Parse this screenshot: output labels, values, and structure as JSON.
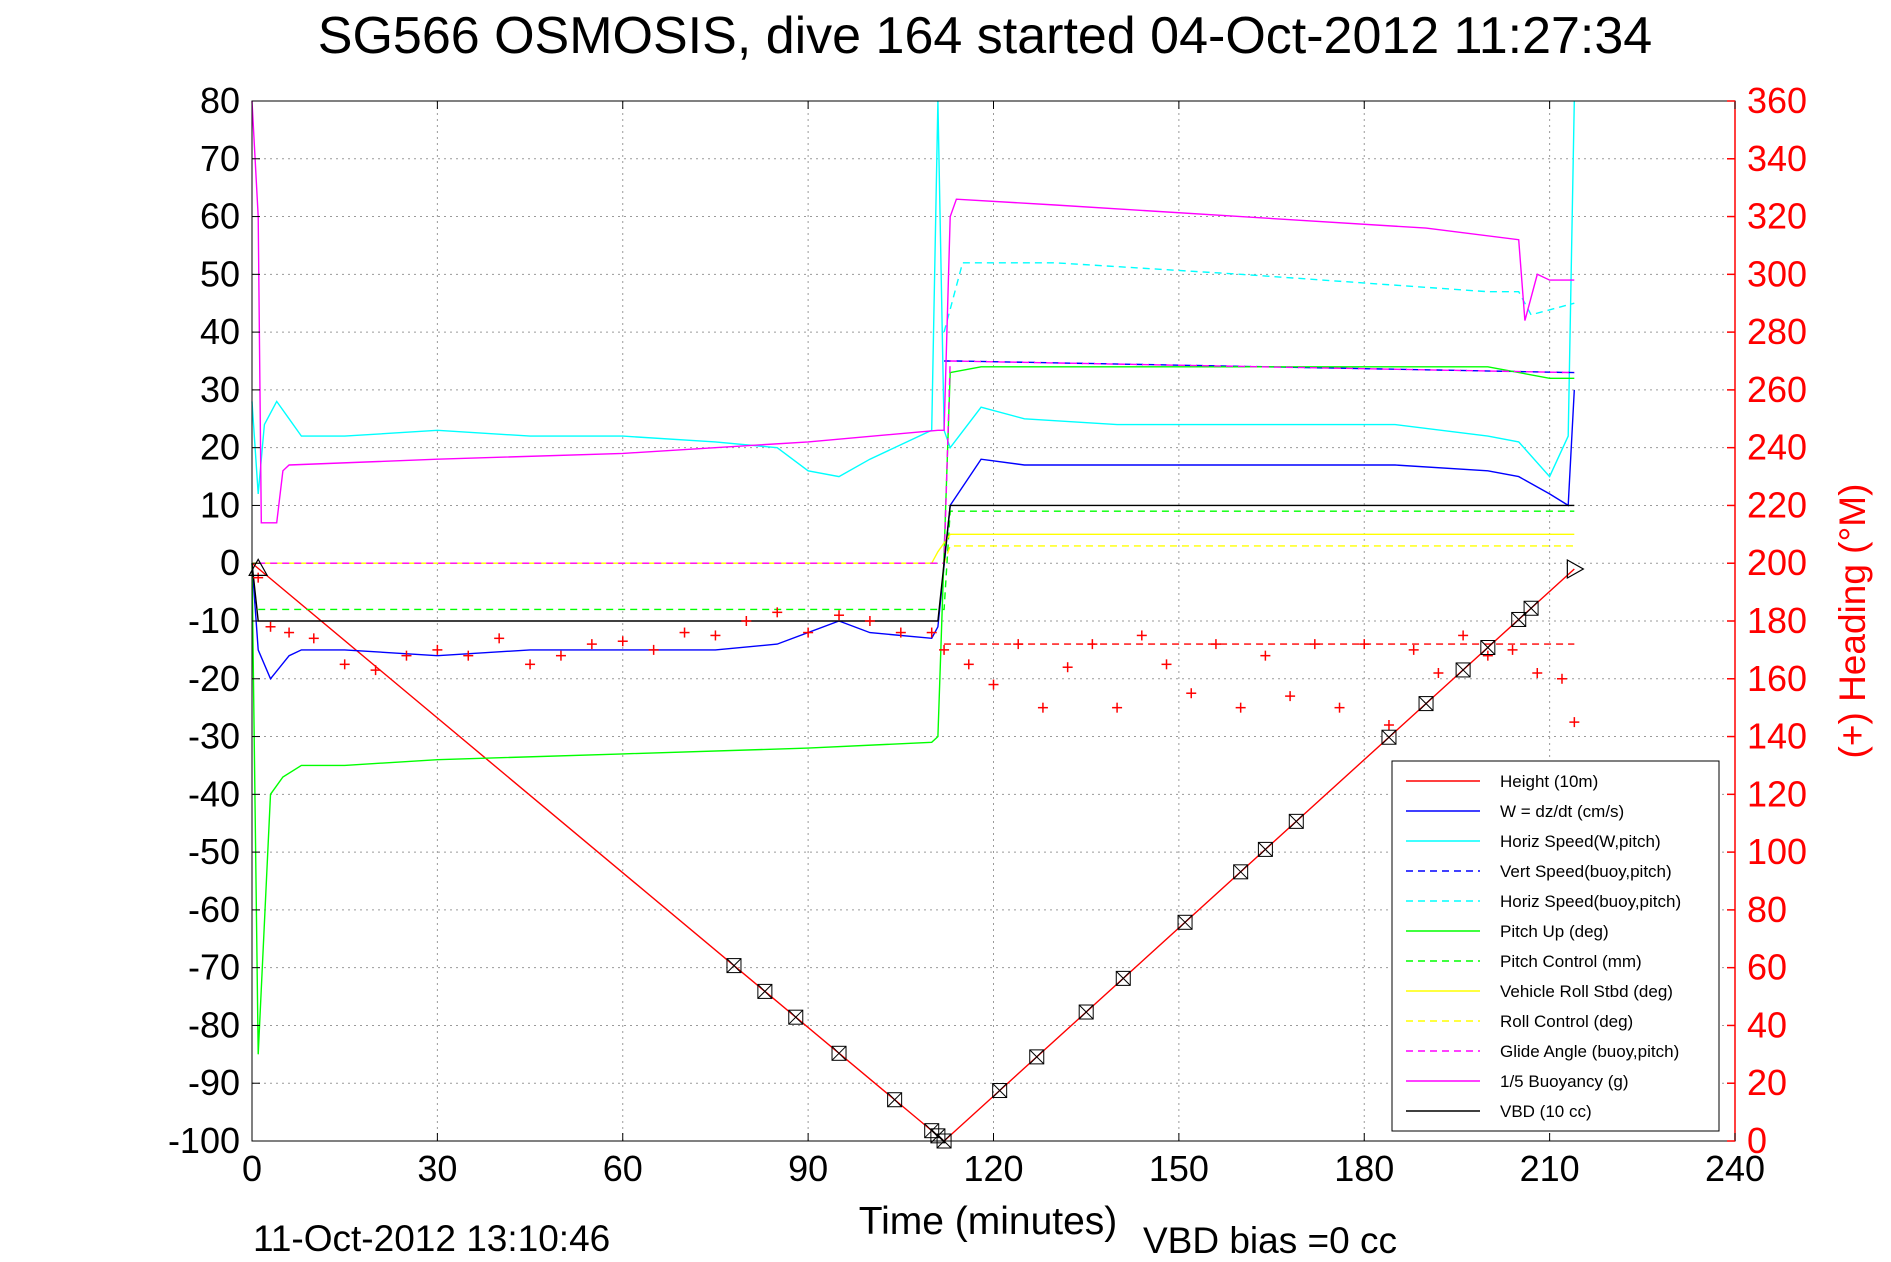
{
  "chart_data": {
    "type": "line",
    "title": "SG566 OSMOSIS, dive 164 started 04-Oct-2012 11:27:34",
    "xlabel": "Time (minutes)",
    "ylabel_right": "(+) Heading (°M)",
    "footer_left": "11-Oct-2012 13:10:46",
    "footer_right": "VBD bias =0 cc",
    "xlim": [
      0,
      240
    ],
    "ylim": [
      -100,
      80
    ],
    "ylim_right": [
      0,
      360
    ],
    "x_ticks": [
      "0",
      "30",
      "60",
      "90",
      "120",
      "150",
      "180",
      "210",
      "240"
    ],
    "y_ticks": [
      "80",
      "70",
      "60",
      "50",
      "40",
      "30",
      "20",
      "10",
      "0",
      "-10",
      "-20",
      "-30",
      "-40",
      "-50",
      "-60",
      "-70",
      "-80",
      "-90",
      "-100"
    ],
    "y_ticks_right": [
      "360",
      "340",
      "320",
      "300",
      "280",
      "260",
      "240",
      "220",
      "200",
      "180",
      "160",
      "140",
      "120",
      "100",
      "80",
      "60",
      "40",
      "20",
      "0"
    ],
    "grid": true,
    "legend_position": "bottom-right",
    "colors": {
      "height": "#ff0000",
      "w": "#0000ff",
      "horiz_speed_w": "#00ffff",
      "vert_speed_buoy": "#0000ff",
      "horiz_speed_buoy": "#00ffff",
      "pitch_up": "#00ff00",
      "pitch_control": "#00ff00",
      "roll": "#ffff00",
      "roll_control": "#ffff00",
      "glide_angle": "#ff00ff",
      "buoyancy": "#ff00ff",
      "vbd": "#000000",
      "heading": "#ff0000",
      "right_axis": "#ff0000"
    },
    "series": [
      {
        "name": "Height (10m)",
        "style": "solid",
        "color_key": "height",
        "x": [
          0,
          112,
          214
        ],
        "y": [
          0,
          -100,
          -1
        ]
      },
      {
        "name": "W = dz/dt (cm/s)",
        "style": "solid",
        "color_key": "w",
        "x": [
          0,
          1,
          3,
          6,
          8,
          15,
          30,
          45,
          60,
          75,
          85,
          95,
          100,
          110,
          111,
          113,
          118,
          125,
          140,
          155,
          170,
          185,
          200,
          205,
          210,
          213,
          214
        ],
        "y": [
          0,
          -15,
          -20,
          -16,
          -15,
          -15,
          -16,
          -15,
          -15,
          -15,
          -14,
          -10,
          -12,
          -13,
          -11,
          10,
          18,
          17,
          17,
          17,
          17,
          17,
          16,
          15,
          12,
          10,
          30
        ]
      },
      {
        "name": "Horiz Speed(W,pitch)",
        "style": "solid",
        "color_key": "horiz_speed_w",
        "x": [
          0,
          1,
          2,
          4,
          6,
          8,
          15,
          30,
          45,
          60,
          75,
          85,
          90,
          95,
          100,
          110,
          111,
          112,
          113,
          118,
          125,
          140,
          155,
          170,
          185,
          200,
          205,
          210,
          213,
          214
        ],
        "y": [
          28,
          12,
          24,
          28,
          25,
          22,
          22,
          23,
          22,
          22,
          21,
          20,
          16,
          15,
          18,
          23,
          80,
          23,
          20,
          27,
          25,
          24,
          24,
          24,
          24,
          22,
          21,
          15,
          22,
          80
        ]
      },
      {
        "name": "Vert Speed(buoy,pitch)",
        "style": "dashed",
        "color_key": "vert_speed_buoy",
        "x": [
          112,
          114,
          214
        ],
        "y": [
          35,
          35,
          33
        ]
      },
      {
        "name": "Horiz Speed(buoy,pitch)",
        "style": "dashed",
        "color_key": "horiz_speed_buoy",
        "x": [
          112,
          115,
          130,
          160,
          200,
          205,
          207,
          214
        ],
        "y": [
          40,
          52,
          52,
          50,
          47,
          47,
          43,
          45
        ]
      },
      {
        "name": "Pitch Up (deg)",
        "style": "solid",
        "color_key": "pitch_up",
        "x": [
          0,
          1,
          3,
          5,
          8,
          15,
          30,
          60,
          90,
          110,
          111,
          113,
          118,
          140,
          160,
          180,
          200,
          210,
          214
        ],
        "y": [
          0,
          -85,
          -40,
          -37,
          -35,
          -35,
          -34,
          -33,
          -32,
          -31,
          -30,
          33,
          34,
          34,
          34,
          34,
          34,
          32,
          32
        ]
      },
      {
        "name": "Pitch Control (mm)",
        "style": "dashed",
        "color_key": "pitch_control",
        "x": [
          1,
          112,
          113,
          214
        ],
        "y": [
          -8,
          -8,
          9,
          9
        ]
      },
      {
        "name": "Vehicle Roll Stbd (deg)",
        "style": "solid",
        "color_key": "roll",
        "x": [
          0,
          5,
          60,
          110,
          111,
          113,
          214
        ],
        "y": [
          0,
          0,
          0,
          0,
          2,
          5,
          5
        ]
      },
      {
        "name": "Roll Control (deg)",
        "style": "dashed",
        "color_key": "roll_control",
        "x": [
          1,
          112,
          113,
          214
        ],
        "y": [
          0,
          0,
          3,
          3
        ]
      },
      {
        "name": "Glide Angle (buoy,pitch)",
        "style": "dashed",
        "color_key": "glide_angle",
        "x": [
          1,
          112,
          113,
          214
        ],
        "y": [
          0,
          0,
          35,
          33
        ]
      },
      {
        "name": "1/5 Buoyancy (g)",
        "style": "solid",
        "color_key": "buoyancy",
        "x": [
          0,
          1,
          1.5,
          4,
          5,
          6,
          30,
          60,
          90,
          111,
          112,
          113,
          114,
          130,
          160,
          190,
          205,
          206,
          208,
          210,
          214
        ],
        "y": [
          80,
          60,
          7,
          7,
          16,
          17,
          18,
          19,
          21,
          23,
          23,
          60,
          63,
          62,
          60,
          58,
          56,
          42,
          50,
          49,
          49
        ]
      },
      {
        "name": "VBD (10 cc)",
        "style": "solid",
        "color_key": "vbd",
        "x": [
          0,
          1,
          111,
          113,
          214
        ],
        "y": [
          0,
          -10,
          -10,
          10,
          10
        ]
      }
    ],
    "heading_series": {
      "name": "Heading (°M)",
      "marker": "+",
      "color_key": "heading",
      "axis": "right",
      "target": 172,
      "x": [
        1,
        3,
        6,
        10,
        15,
        20,
        25,
        30,
        35,
        40,
        45,
        50,
        55,
        60,
        65,
        70,
        75,
        80,
        85,
        90,
        95,
        100,
        105,
        110,
        112,
        116,
        120,
        124,
        128,
        132,
        136,
        140,
        144,
        148,
        152,
        156,
        160,
        164,
        168,
        172,
        176,
        180,
        184,
        188,
        192,
        196,
        200,
        204,
        208,
        212,
        214
      ],
      "y": [
        195,
        178,
        176,
        174,
        165,
        163,
        168,
        170,
        168,
        174,
        165,
        168,
        172,
        173,
        170,
        176,
        175,
        180,
        183,
        176,
        182,
        180,
        176,
        176,
        170,
        165,
        158,
        172,
        150,
        164,
        172,
        150,
        175,
        165,
        155,
        172,
        150,
        168,
        154,
        172,
        150,
        172,
        144,
        170,
        162,
        175,
        168,
        170,
        162,
        160,
        145
      ]
    },
    "markers": {
      "sample_points_x": [
        78,
        83,
        88,
        95,
        104,
        110,
        111,
        112,
        121,
        127,
        135,
        141,
        151,
        160,
        164,
        169,
        184,
        190,
        196,
        200,
        205,
        207
      ],
      "start_triangle_x": 1,
      "end_triangle_x": 214
    }
  }
}
